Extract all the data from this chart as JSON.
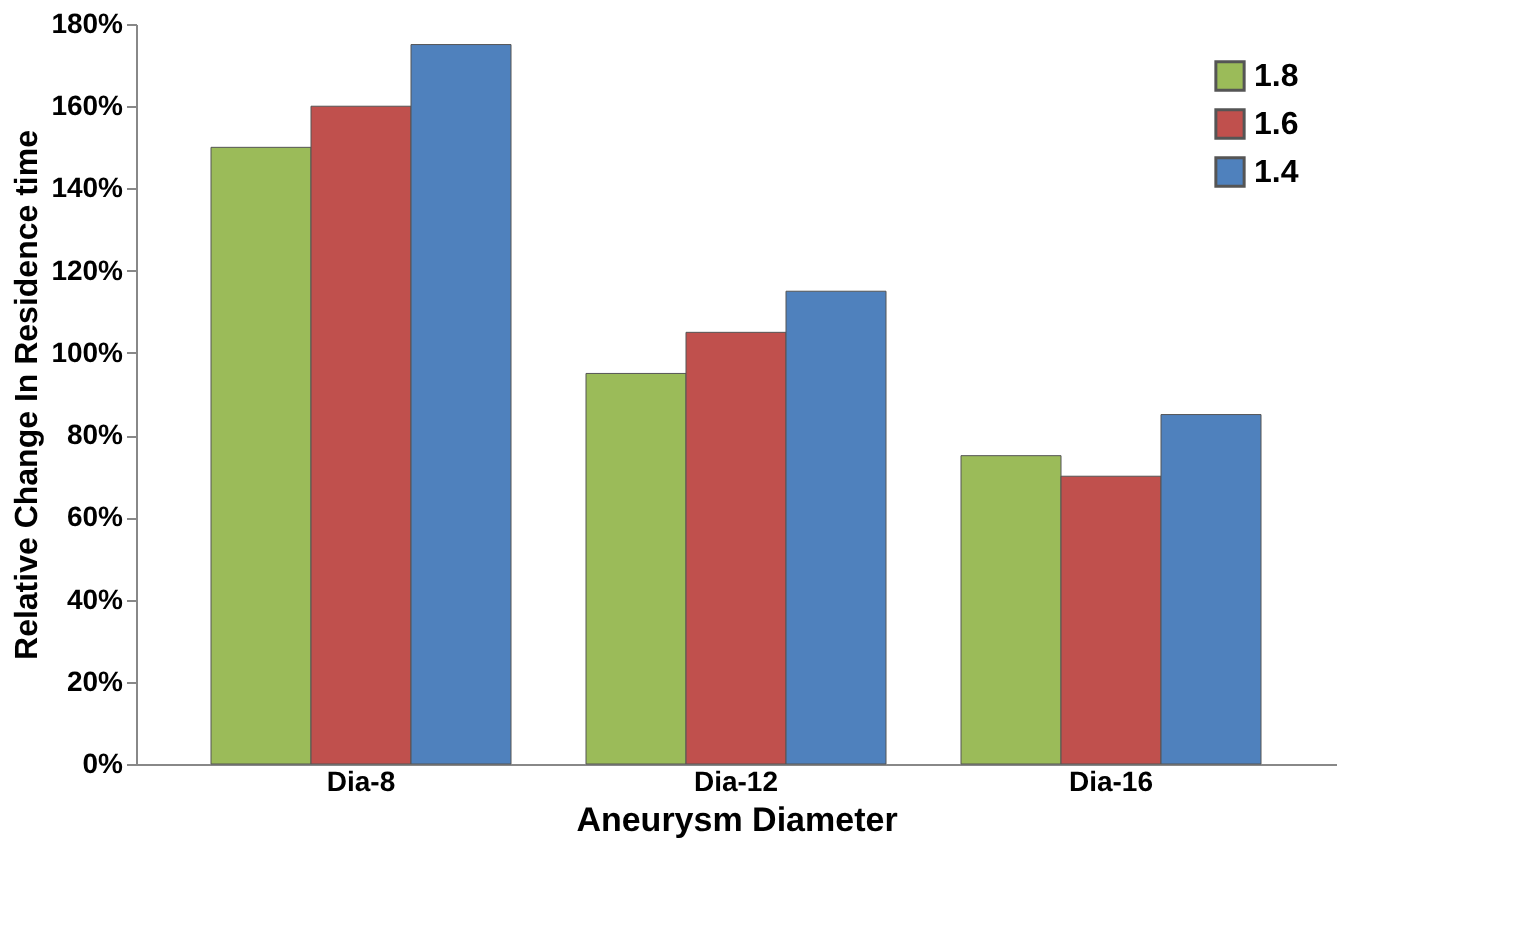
{
  "chart_data": {
    "type": "bar",
    "xlabel": "Aneurysm Diameter",
    "ylabel": "Relative Change In  Residence time",
    "categories": [
      "Dia-8",
      "Dia-12",
      "Dia-16"
    ],
    "series": [
      {
        "name": "1.8",
        "color": "#9bbb59",
        "values": [
          150,
          95,
          75
        ]
      },
      {
        "name": "1.6",
        "color": "#c0504d",
        "values": [
          160,
          105,
          70
        ]
      },
      {
        "name": "1.4",
        "color": "#4f81bd",
        "values": [
          175,
          115,
          85
        ]
      }
    ],
    "ylim": [
      0,
      180
    ],
    "yticks": [
      {
        "value": 0,
        "label": "0%"
      },
      {
        "value": 20,
        "label": "20%"
      },
      {
        "value": 40,
        "label": "40%"
      },
      {
        "value": 60,
        "label": "60%"
      },
      {
        "value": 80,
        "label": "80%"
      },
      {
        "value": 100,
        "label": "100%"
      },
      {
        "value": 120,
        "label": "120%"
      },
      {
        "value": 140,
        "label": "140%"
      },
      {
        "value": 160,
        "label": "160%"
      },
      {
        "value": 180,
        "label": "180%"
      }
    ],
    "grid": false,
    "legend": "top right"
  }
}
